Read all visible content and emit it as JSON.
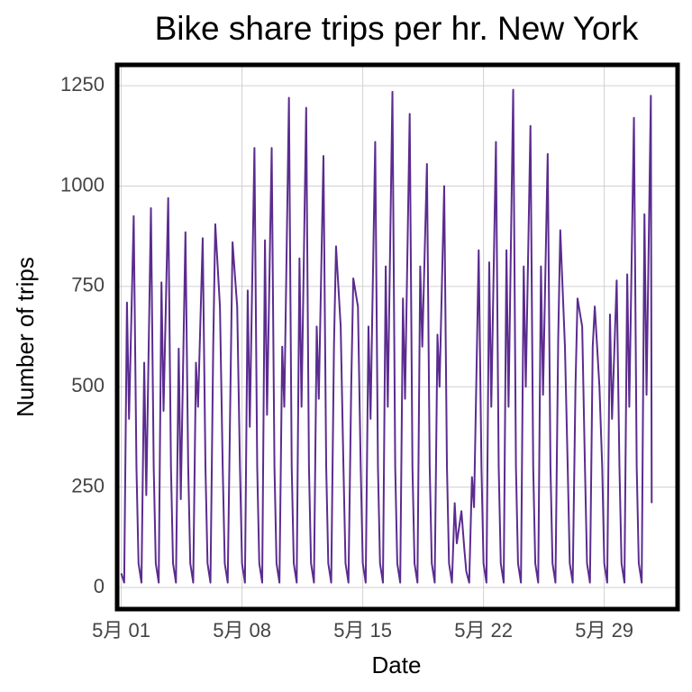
{
  "chart_data": {
    "type": "line",
    "title": "Bike share trips per hr. New York",
    "x_label": "Date",
    "y_label": "Number of trips",
    "xlim": [
      0.76,
      33.25
    ],
    "ylim": [
      -54,
      1302
    ],
    "xticks": [
      {
        "value": 1,
        "label": "5月 01"
      },
      {
        "value": 8,
        "label": "5月 08"
      },
      {
        "value": 15,
        "label": "5月 15"
      },
      {
        "value": 22,
        "label": "5月 22"
      },
      {
        "value": 29,
        "label": "5月 29"
      }
    ],
    "yticks": [
      0,
      250,
      500,
      750,
      1000,
      1250
    ],
    "grid": true,
    "series": [
      {
        "name": "Number of trips",
        "color": "#5b2c8f",
        "x": [
          1,
          1.17,
          1.33,
          1.45,
          1.72,
          1.88,
          2,
          2.17,
          2.33,
          2.45,
          2.72,
          2.88,
          3,
          3.17,
          3.33,
          3.45,
          3.72,
          3.88,
          4,
          4.17,
          4.33,
          4.45,
          4.72,
          4.88,
          5,
          5.17,
          5.33,
          5.45,
          5.72,
          5.88,
          6,
          6.17,
          6.33,
          6.45,
          6.72,
          6.88,
          7,
          7.17,
          7.33,
          7.45,
          7.72,
          7.88,
          8,
          8.17,
          8.33,
          8.45,
          8.72,
          8.88,
          9,
          9.17,
          9.33,
          9.45,
          9.72,
          9.88,
          10,
          10.17,
          10.33,
          10.45,
          10.72,
          10.88,
          11,
          11.17,
          11.33,
          11.45,
          11.72,
          11.88,
          12,
          12.17,
          12.33,
          12.45,
          12.72,
          12.88,
          13,
          13.17,
          13.33,
          13.45,
          13.72,
          13.88,
          14,
          14.17,
          14.33,
          14.45,
          14.72,
          14.88,
          15,
          15.17,
          15.33,
          15.45,
          15.72,
          15.88,
          16,
          16.17,
          16.33,
          16.45,
          16.72,
          16.88,
          17,
          17.17,
          17.33,
          17.45,
          17.72,
          17.88,
          18,
          18.17,
          18.33,
          18.45,
          18.72,
          18.88,
          19,
          19.17,
          19.33,
          19.45,
          19.72,
          19.88,
          20,
          20.17,
          20.33,
          20.45,
          20.72,
          20.88,
          21,
          21.17,
          21.33,
          21.45,
          21.72,
          21.88,
          22,
          22.17,
          22.33,
          22.45,
          22.72,
          22.88,
          23,
          23.17,
          23.33,
          23.45,
          23.72,
          23.88,
          24,
          24.17,
          24.33,
          24.45,
          24.72,
          24.88,
          25,
          25.17,
          25.33,
          25.45,
          25.72,
          25.88,
          26,
          26.17,
          26.33,
          26.45,
          26.72,
          26.88,
          27,
          27.17,
          27.33,
          27.45,
          27.72,
          27.88,
          28,
          28.17,
          28.33,
          28.45,
          28.72,
          28.88,
          29,
          29.17,
          29.33,
          29.45,
          29.72,
          29.88,
          30,
          30.17,
          30.33,
          30.45,
          30.72,
          30.88,
          31,
          31.17,
          31.33,
          31.45,
          31.7,
          31.75
        ],
        "values": [
          35,
          12,
          710,
          420,
          925,
          300,
          60,
          12,
          560,
          230,
          945,
          300,
          60,
          12,
          760,
          440,
          970,
          300,
          60,
          12,
          595,
          220,
          885,
          300,
          60,
          12,
          560,
          450,
          870,
          300,
          60,
          12,
          600,
          905,
          700,
          300,
          60,
          12,
          500,
          860,
          700,
          300,
          60,
          12,
          740,
          400,
          1095,
          300,
          60,
          12,
          865,
          430,
          1095,
          300,
          60,
          12,
          600,
          450,
          1220,
          300,
          60,
          12,
          820,
          450,
          1195,
          300,
          60,
          12,
          650,
          470,
          1075,
          300,
          60,
          12,
          600,
          850,
          650,
          300,
          60,
          12,
          500,
          770,
          700,
          300,
          60,
          12,
          650,
          420,
          1110,
          300,
          60,
          12,
          800,
          450,
          1235,
          300,
          60,
          12,
          720,
          470,
          1180,
          300,
          60,
          12,
          800,
          600,
          1055,
          300,
          60,
          12,
          630,
          500,
          1000,
          300,
          60,
          12,
          210,
          110,
          190,
          100,
          40,
          12,
          275,
          200,
          840,
          300,
          60,
          12,
          810,
          450,
          1110,
          300,
          60,
          12,
          840,
          450,
          1240,
          300,
          60,
          12,
          800,
          500,
          1150,
          300,
          60,
          12,
          800,
          480,
          1080,
          300,
          60,
          12,
          620,
          890,
          600,
          300,
          60,
          12,
          500,
          720,
          650,
          300,
          60,
          12,
          600,
          700,
          500,
          300,
          60,
          12,
          680,
          420,
          765,
          300,
          60,
          12,
          780,
          450,
          1170,
          300,
          60,
          12,
          930,
          480,
          1225,
          210
        ]
      }
    ]
  }
}
